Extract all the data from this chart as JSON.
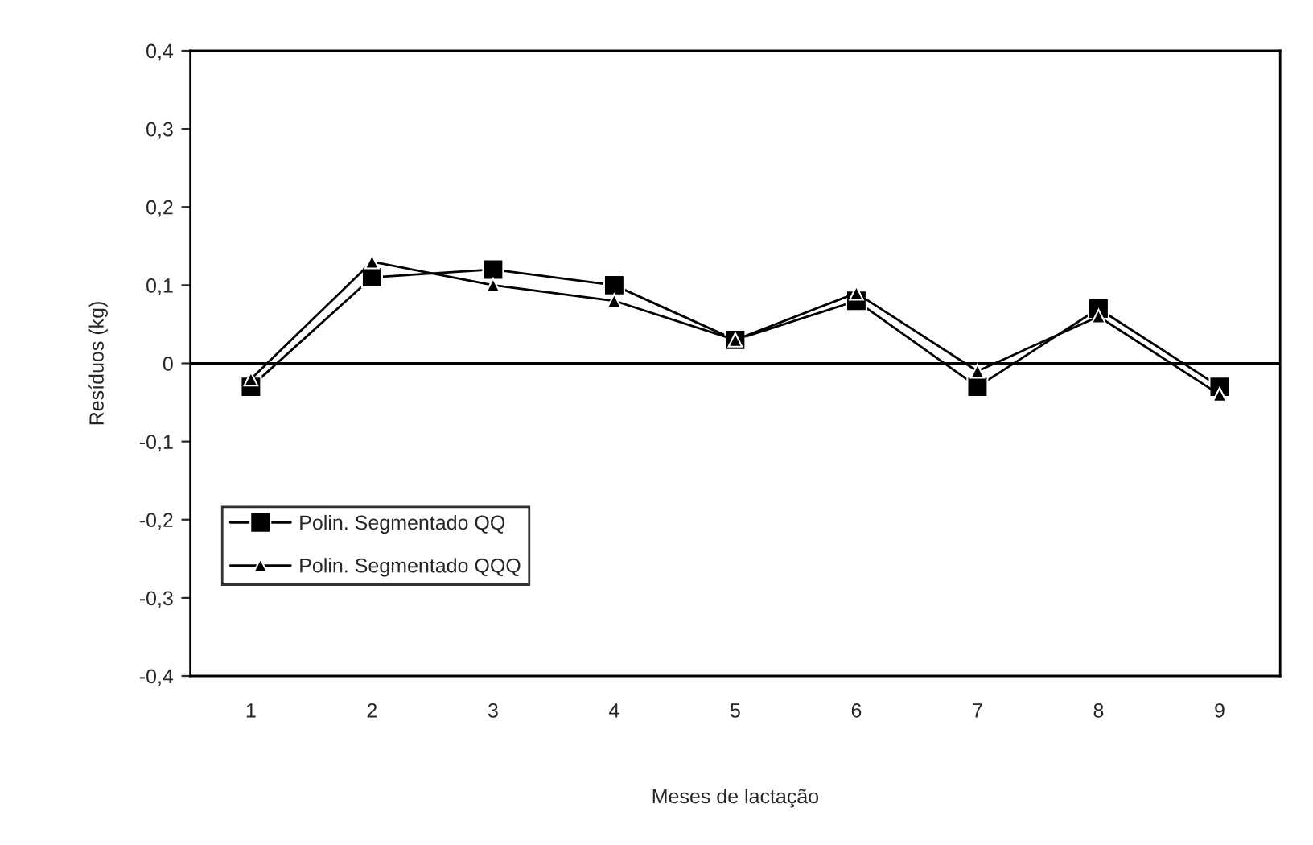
{
  "chart_data": {
    "type": "line",
    "xlabel": "Meses de lactação",
    "ylabel": "Resíduos (kg)",
    "categories": [
      "1",
      "2",
      "3",
      "4",
      "5",
      "6",
      "7",
      "8",
      "9"
    ],
    "series": [
      {
        "name": "Polin. Segmentado QQ",
        "color": "#000000",
        "marker": "square",
        "values": [
          -0.03,
          0.11,
          0.12,
          0.1,
          0.03,
          0.08,
          -0.03,
          0.07,
          -0.03
        ]
      },
      {
        "name": "Polin. Segmentado QQQ",
        "color": "#000000",
        "marker": "triangle",
        "values": [
          -0.02,
          0.13,
          0.1,
          0.08,
          0.03,
          0.09,
          -0.01,
          0.06,
          -0.04
        ]
      }
    ],
    "ylim": [
      -0.4,
      0.4
    ],
    "yticks": [
      {
        "value": -0.4,
        "label": "-0,4"
      },
      {
        "value": -0.3,
        "label": "-0,3"
      },
      {
        "value": -0.2,
        "label": "-0,2"
      },
      {
        "value": -0.1,
        "label": "-0,1"
      },
      0,
      {
        "value": 0.1,
        "label": "0,1"
      },
      {
        "value": 0.2,
        "label": "0,2"
      },
      {
        "value": 0.3,
        "label": "0,3"
      },
      {
        "value": 0.4,
        "label": "0,4"
      }
    ],
    "ref_lines": [
      {
        "axis": "y",
        "value": 0,
        "color": "#000000",
        "line_style": "solid"
      }
    ],
    "grid": false,
    "legend": "bottom left",
    "line_style": "solid"
  }
}
